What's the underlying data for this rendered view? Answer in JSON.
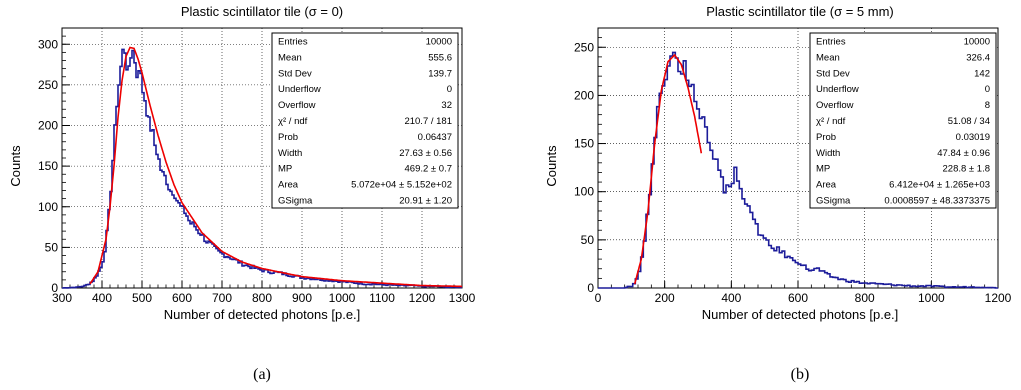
{
  "colors": {
    "histogram": "#1c1c9a",
    "fit": "#ee0000",
    "grid": "#000000",
    "axis": "#000000"
  },
  "panels": [
    {
      "id": "a",
      "title": "Plastic scintillator tile (σ = 0)",
      "caption": "(a)",
      "stats": [
        [
          "Entries",
          "10000"
        ],
        [
          "Mean",
          "555.6"
        ],
        [
          "Std Dev",
          "139.7"
        ],
        [
          "Underflow",
          "0"
        ],
        [
          "Overflow",
          "32"
        ],
        [
          "χ² / ndf",
          "210.7 / 181"
        ],
        [
          "Prob",
          "0.06437"
        ],
        [
          "Width",
          "27.63 ± 0.56"
        ],
        [
          "MP",
          "469.2 ± 0.7"
        ],
        [
          "Area",
          "5.072e+04 ± 5.152e+02"
        ],
        [
          "GSigma",
          "20.91 ± 1.20"
        ]
      ]
    },
    {
      "id": "b",
      "title": "Plastic scintillator tile (σ = 5 mm)",
      "caption": "(b)",
      "stats": [
        [
          "Entries",
          "10000"
        ],
        [
          "Mean",
          "326.4"
        ],
        [
          "Std Dev",
          "142"
        ],
        [
          "Underflow",
          "0"
        ],
        [
          "Overflow",
          "8"
        ],
        [
          "χ² / ndf",
          "51.08 / 34"
        ],
        [
          "Prob",
          "0.03019"
        ],
        [
          "Width",
          "47.84 ± 0.96"
        ],
        [
          "MP",
          "228.8 ± 1.8"
        ],
        [
          "Area",
          "6.412e+04 ± 1.265e+03"
        ],
        [
          "GSigma",
          "0.0008597 ± 48.3373375"
        ]
      ]
    }
  ],
  "chart_data": [
    {
      "type": "histogram",
      "title": "Plastic scintillator tile (σ = 0)",
      "xlabel": "Number of detected photons [p.e.]",
      "ylabel": "Counts",
      "xlim": [
        300,
        1300
      ],
      "ylim": [
        0,
        320
      ],
      "xticks": [
        300,
        400,
        500,
        600,
        700,
        800,
        900,
        1000,
        1100,
        1200,
        1300
      ],
      "yticks": [
        0,
        50,
        100,
        150,
        200,
        250,
        300
      ],
      "grid": true,
      "bin_width": 5,
      "series": [
        {
          "kind": "histogram",
          "x": [
            300,
            340,
            360,
            370,
            380,
            390,
            400,
            405,
            410,
            415,
            420,
            425,
            430,
            435,
            440,
            445,
            450,
            455,
            460,
            465,
            470,
            475,
            480,
            485,
            490,
            495,
            500,
            505,
            510,
            515,
            520,
            525,
            530,
            535,
            540,
            545,
            550,
            560,
            570,
            580,
            590,
            600,
            610,
            620,
            630,
            640,
            650,
            660,
            670,
            680,
            690,
            700,
            710,
            720,
            730,
            740,
            750,
            760,
            780,
            800,
            820,
            840,
            860,
            880,
            900,
            920,
            940,
            960,
            980,
            1000,
            1020,
            1040,
            1060,
            1080,
            1100,
            1120,
            1140,
            1160,
            1180,
            1200,
            1220,
            1240,
            1260,
            1280,
            1300
          ],
          "y": [
            0,
            1,
            3,
            6,
            10,
            18,
            28,
            40,
            55,
            80,
            105,
            140,
            175,
            215,
            240,
            262,
            282,
            300,
            285,
            262,
            270,
            298,
            295,
            258,
            265,
            280,
            240,
            245,
            220,
            215,
            195,
            198,
            182,
            170,
            165,
            150,
            142,
            135,
            120,
            118,
            105,
            98,
            92,
            80,
            78,
            70,
            66,
            58,
            55,
            50,
            45,
            42,
            40,
            38,
            35,
            33,
            30,
            28,
            25,
            22,
            20,
            19,
            17,
            15,
            13,
            12,
            11,
            10,
            9,
            8,
            7,
            6,
            5,
            5,
            4,
            4,
            3,
            3,
            3,
            2,
            2,
            2,
            1,
            1,
            1
          ]
        },
        {
          "kind": "fit",
          "x": [
            370,
            390,
            410,
            420,
            430,
            440,
            450,
            460,
            470,
            480,
            490,
            500,
            520,
            540,
            560,
            580,
            600,
            650,
            700,
            750,
            800,
            900,
            1000,
            1100,
            1200,
            1300
          ],
          "y": [
            5,
            20,
            60,
            100,
            150,
            210,
            255,
            285,
            296,
            295,
            282,
            265,
            225,
            188,
            155,
            127,
            105,
            68,
            45,
            32,
            24,
            14,
            9,
            6,
            3,
            2
          ]
        }
      ]
    },
    {
      "type": "histogram",
      "title": "Plastic scintillator tile (σ = 5 mm)",
      "xlabel": "Number of detected photons [p.e.]",
      "ylabel": "Counts",
      "xlim": [
        0,
        1200
      ],
      "ylim": [
        0,
        270
      ],
      "xticks": [
        0,
        200,
        400,
        600,
        800,
        1000,
        1200
      ],
      "yticks": [
        0,
        50,
        100,
        150,
        200,
        250
      ],
      "grid": true,
      "bin_width": 8,
      "series": [
        {
          "kind": "histogram",
          "x": [
            0,
            80,
            100,
            110,
            120,
            130,
            140,
            150,
            160,
            170,
            180,
            190,
            200,
            210,
            220,
            230,
            240,
            250,
            260,
            270,
            280,
            290,
            300,
            310,
            320,
            330,
            340,
            350,
            360,
            370,
            380,
            390,
            400,
            410,
            420,
            430,
            440,
            450,
            460,
            470,
            480,
            490,
            500,
            520,
            540,
            560,
            580,
            600,
            620,
            640,
            660,
            680,
            700,
            720,
            740,
            760,
            780,
            800,
            850,
            900,
            950,
            1000,
            1050,
            1100,
            1150,
            1200
          ],
          "y": [
            0,
            0,
            2,
            5,
            12,
            28,
            50,
            80,
            115,
            150,
            185,
            205,
            215,
            235,
            245,
            250,
            238,
            215,
            235,
            205,
            222,
            195,
            185,
            175,
            175,
            150,
            140,
            128,
            130,
            120,
            100,
            112,
            95,
            130,
            110,
            100,
            92,
            90,
            75,
            70,
            60,
            55,
            50,
            42,
            40,
            35,
            30,
            28,
            22,
            18,
            20,
            15,
            12,
            10,
            8,
            7,
            6,
            5,
            4,
            3,
            2,
            2,
            1,
            1,
            1,
            0
          ]
        },
        {
          "kind": "fit",
          "x": [
            110,
            130,
            150,
            170,
            190,
            210,
            230,
            250,
            270,
            290,
            310
          ],
          "y": [
            4,
            30,
            80,
            150,
            205,
            235,
            242,
            232,
            208,
            178,
            140
          ]
        }
      ]
    }
  ]
}
